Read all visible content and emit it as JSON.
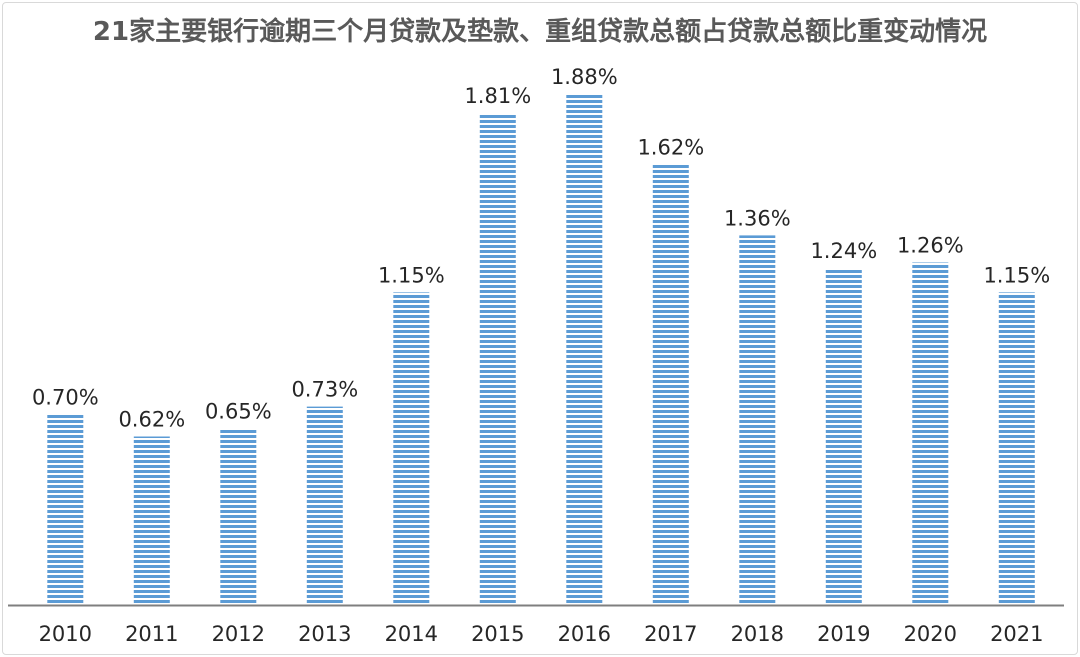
{
  "chart_data": {
    "type": "bar",
    "title": "21家主要银行逾期三个月贷款及垫款、重组贷款总额占贷款总额比重变动情况",
    "categories": [
      "2010",
      "2011",
      "2012",
      "2013",
      "2014",
      "2015",
      "2016",
      "2017",
      "2018",
      "2019",
      "2020",
      "2021"
    ],
    "values": [
      0.7,
      0.62,
      0.65,
      0.73,
      1.15,
      1.81,
      1.88,
      1.62,
      1.36,
      1.24,
      1.26,
      1.15
    ],
    "data_labels": [
      "0.70%",
      "0.62%",
      "0.65%",
      "0.73%",
      "1.15%",
      "1.81%",
      "1.88%",
      "1.62%",
      "1.36%",
      "1.24%",
      "1.26%",
      "1.15%"
    ],
    "xlabel": "",
    "ylabel": "",
    "ylim": [
      0,
      1.95
    ],
    "grid": false,
    "legend": "none",
    "bar_fill": "horizontal-stripes",
    "colors": {
      "bar_stripe": "#5b9bd5",
      "bar_gap": "#ffffff",
      "axis": "#7f7f7f",
      "title": "#595959",
      "label": "#262626"
    }
  }
}
